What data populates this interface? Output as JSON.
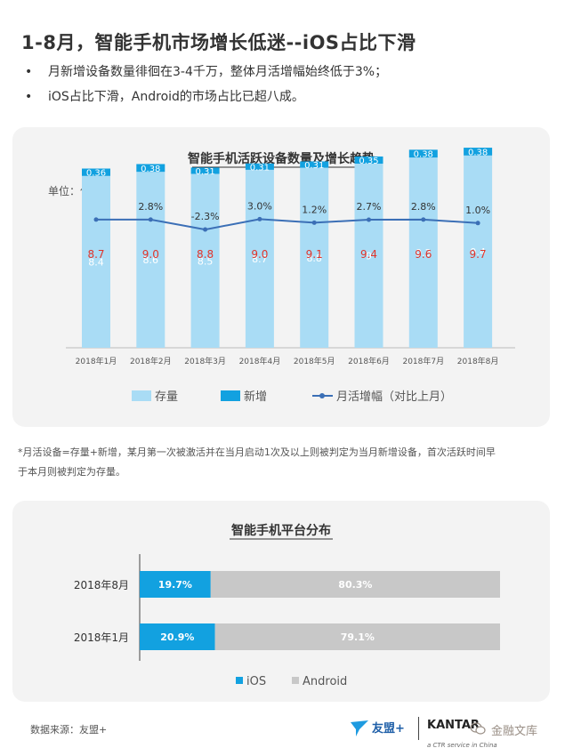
{
  "page": {
    "title": "1-8月，智能手机市场增长低迷--iOS占比下滑",
    "bullets": [
      "月新增设备数量徘徊在3-4千万，整体月活增幅始终低于3%；",
      "iOS占比下滑，Android的市场占比已超八成。"
    ],
    "bullet_glyph": "•",
    "footnote_line1": "*月活设备=存量+新增，某月第一次被激活并在当月启动1次及以上则被判定为当月新增设备，首次活跃时间早",
    "footnote_line2": "于本月则被判定为存量。",
    "source": "数据来源：友盟+",
    "brand_umeng": "友盟+",
    "brand_kantar": "KANTAR",
    "brand_kantar_sub": "a CTR service in China",
    "watermark": "金融文库"
  },
  "colors": {
    "stock": "#a9dcf5",
    "new": "#12a1e0",
    "line": "#3b6fb6",
    "total_label": "#e0342b",
    "ios": "#12a1e0",
    "android": "#c8c8c8",
    "panel_bg": "#f3f3f3"
  },
  "chart_data": [
    {
      "type": "bar",
      "title": "智能手机活跃设备数量及增长趋势",
      "unit": "单位：亿",
      "stacked": true,
      "categories": [
        "2018年1月",
        "2018年2月",
        "2018年3月",
        "2018年4月",
        "2018年5月",
        "2018年6月",
        "2018年7月",
        "2018年8月"
      ],
      "series": [
        {
          "name": "存量",
          "values": [
            8.4,
            8.6,
            8.5,
            8.7,
            8.8,
            9.0,
            9.3,
            9.4
          ]
        },
        {
          "name": "新增",
          "values": [
            0.36,
            0.38,
            0.31,
            0.31,
            0.31,
            0.35,
            0.38,
            0.38
          ]
        }
      ],
      "total_labels": [
        "8.7",
        "9.0",
        "8.8",
        "9.0",
        "9.1",
        "9.4",
        "9.6",
        "9.7"
      ],
      "line_series": {
        "name": "月活增幅（对比上月）",
        "values": [
          2.8,
          2.8,
          -2.3,
          3.0,
          1.2,
          2.7,
          2.8,
          1.0
        ],
        "labels": [
          "",
          "2.8%",
          "-2.3%",
          "3.0%",
          "1.2%",
          "2.7%",
          "2.8%",
          "1.0%"
        ]
      },
      "legend": [
        "存量",
        "新增",
        "月活增幅（对比上月）"
      ],
      "legend_position": "bottom"
    },
    {
      "type": "bar",
      "orientation": "horizontal",
      "stacked": true,
      "percent": true,
      "title": "智能手机平台分布",
      "categories": [
        "2018年8月",
        "2018年1月"
      ],
      "series": [
        {
          "name": "iOS",
          "values": [
            19.7,
            20.9
          ],
          "labels": [
            "19.7%",
            "20.9%"
          ]
        },
        {
          "name": "Android",
          "values": [
            80.3,
            79.1
          ],
          "labels": [
            "80.3%",
            "79.1%"
          ]
        }
      ],
      "legend": [
        "iOS",
        "Android"
      ],
      "legend_position": "bottom"
    }
  ]
}
